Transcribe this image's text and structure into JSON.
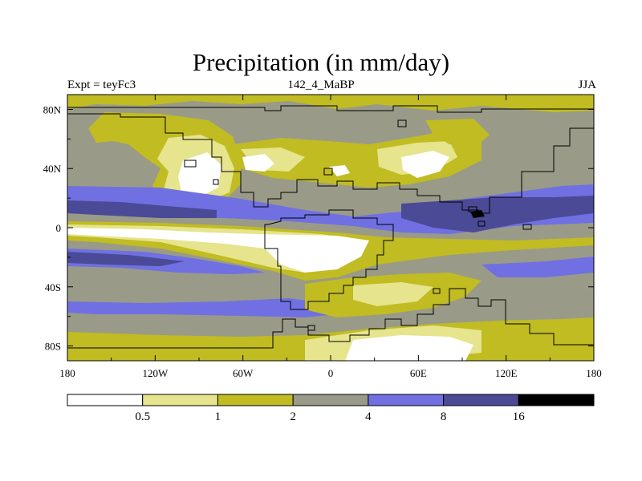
{
  "title": "Precipitation (in mm/day)",
  "subtitle_left": "Expt = teyFc3",
  "subtitle_center": "142_4_MaBP",
  "subtitle_right": "JJA",
  "chart_data": {
    "type": "heatmap",
    "variable": "Precipitation",
    "units": "mm/day",
    "season": "JJA",
    "experiment": "teyFc3",
    "period": "142_4_MaBP",
    "x_ticks": [
      "180",
      "120W",
      "60W",
      "0",
      "60E",
      "120E",
      "180"
    ],
    "y_ticks": [
      "80N",
      "40N",
      "0",
      "40S",
      "80S"
    ],
    "xlim": [
      -180,
      180
    ],
    "ylim": [
      -90,
      90
    ],
    "colorbar": {
      "levels": [
        "0.5",
        "1",
        "2",
        "4",
        "8",
        "16"
      ],
      "colors": [
        "#ffffff",
        "#e6e48c",
        "#c0bc22",
        "#9a9a88",
        "#7070e2",
        "#4a4a96",
        "#000000"
      ]
    },
    "colors": {
      "white": "#ffffff",
      "pale": "#e6e48c",
      "olive": "#c0bc22",
      "gray": "#9a9a88",
      "blue": "#7070e2",
      "navy": "#4a4a96",
      "black": "#000000"
    }
  }
}
